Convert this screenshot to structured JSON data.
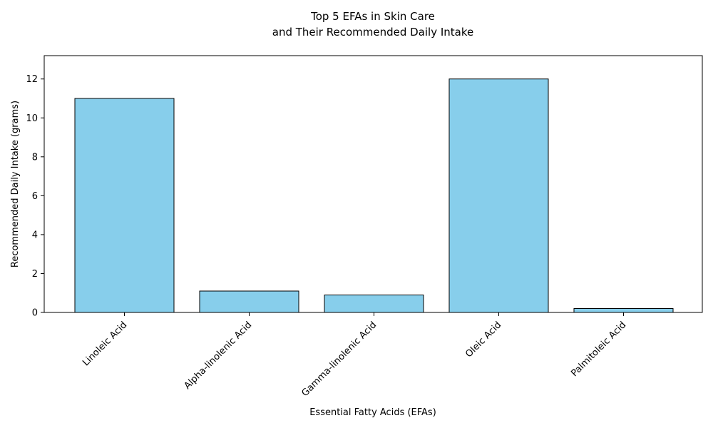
{
  "chart_data": {
    "type": "bar",
    "title_lines": [
      "Top 5 EFAs in Skin Care",
      "and Their Recommended Daily Intake"
    ],
    "xlabel": "Essential Fatty Acids (EFAs)",
    "ylabel": "Recommended Daily Intake (grams)",
    "categories": [
      "Linoleic Acid",
      "Alpha-linolenic Acid",
      "Gamma-linolenic Acid",
      "Oleic Acid",
      "Palmitoleic Acid"
    ],
    "values": [
      11,
      1.1,
      0.9,
      12,
      0.2
    ],
    "ylim": [
      0,
      13.2
    ],
    "yticks": [
      0,
      2,
      4,
      6,
      8,
      10,
      12
    ],
    "grid": false,
    "colors": {
      "bar_fill": "#87CEEB",
      "bar_edge": "#000000",
      "axis": "#000000"
    }
  }
}
